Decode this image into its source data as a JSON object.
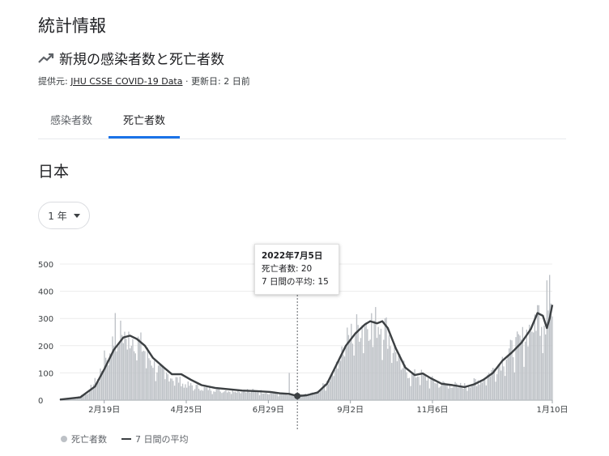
{
  "header": {
    "title": "統計情報",
    "subtitle": "新規の感染者数と死亡者数",
    "source_label": "提供元:",
    "source_link": "JHU CSSE COVID-19 Data",
    "updated": "· 更新日: 2 日前"
  },
  "tabs": [
    {
      "label": "感染者数"
    },
    {
      "label": "死亡者数"
    }
  ],
  "region": "日本",
  "range_select": {
    "value": "1 年"
  },
  "tooltip": {
    "date": "2022年7月5日",
    "deaths": "死亡者数: 20",
    "avg": "7 日間の平均: 15"
  },
  "legend": {
    "deaths": "死亡者数",
    "avg": "7 日間の平均"
  },
  "colors": {
    "bar": "#bdc1c6",
    "line": "#3c4043",
    "accent": "#1a73e8"
  },
  "chart_data": {
    "type": "bar",
    "x_range": [
      "2022-01-10",
      "2023-01-10"
    ],
    "ylim": [
      0,
      500
    ],
    "y_ticks": [
      0,
      100,
      200,
      300,
      400,
      500
    ],
    "x_ticks": [
      "2月19日",
      "4月25日",
      "6月29日",
      "9月2日",
      "11月6日",
      "1月10日"
    ],
    "grid": true,
    "legend_position": "bottom-left",
    "series": [
      {
        "name": "死亡者数",
        "type": "bar",
        "description": "daily deaths, estimated from the bar envelope",
        "points": [
          [
            "2022-01-10",
            3
          ],
          [
            "2022-01-20",
            7
          ],
          [
            "2022-01-30",
            25
          ],
          [
            "2022-02-07",
            80
          ],
          [
            "2022-02-13",
            160
          ],
          [
            "2022-02-19",
            215
          ],
          [
            "2022-02-24",
            245
          ],
          [
            "2022-03-01",
            235
          ],
          [
            "2022-03-05",
            230
          ],
          [
            "2022-03-10",
            210
          ],
          [
            "2022-03-16",
            165
          ],
          [
            "2022-03-23",
            115
          ],
          [
            "2022-03-30",
            95
          ],
          [
            "2022-04-07",
            75
          ],
          [
            "2022-04-15",
            55
          ],
          [
            "2022-04-25",
            45
          ],
          [
            "2022-05-05",
            40
          ],
          [
            "2022-05-15",
            35
          ],
          [
            "2022-05-25",
            38
          ],
          [
            "2022-06-05",
            33
          ],
          [
            "2022-06-15",
            28
          ],
          [
            "2022-06-25",
            22
          ],
          [
            "2022-06-29",
            20
          ],
          [
            "2022-07-05",
            20
          ],
          [
            "2022-07-10",
            18
          ],
          [
            "2022-07-20",
            30
          ],
          [
            "2022-07-28",
            70
          ],
          [
            "2022-08-03",
            140
          ],
          [
            "2022-08-10",
            215
          ],
          [
            "2022-08-17",
            260
          ],
          [
            "2022-08-24",
            285
          ],
          [
            "2022-09-02",
            285
          ],
          [
            "2022-09-08",
            270
          ],
          [
            "2022-09-14",
            200
          ],
          [
            "2022-09-20",
            130
          ],
          [
            "2022-09-27",
            90
          ],
          [
            "2022-10-04",
            95
          ],
          [
            "2022-10-11",
            75
          ],
          [
            "2022-10-20",
            60
          ],
          [
            "2022-10-30",
            55
          ],
          [
            "2022-11-06",
            52
          ],
          [
            "2022-11-13",
            65
          ],
          [
            "2022-11-20",
            80
          ],
          [
            "2022-11-27",
            110
          ],
          [
            "2022-12-04",
            150
          ],
          [
            "2022-12-11",
            185
          ],
          [
            "2022-12-18",
            215
          ],
          [
            "2022-12-24",
            260
          ],
          [
            "2022-12-30",
            320
          ],
          [
            "2023-01-04",
            300
          ],
          [
            "2023-01-07",
            330
          ],
          [
            "2023-01-10",
            360
          ]
        ],
        "spikes": [
          [
            "2022-06-29",
            100
          ],
          [
            "2023-01-08",
            460
          ],
          [
            "2023-01-06",
            440
          ],
          [
            "2022-02-20",
            320
          ]
        ]
      },
      {
        "name": "7 日間の平均",
        "type": "line",
        "points": [
          [
            "2022-01-10",
            2
          ],
          [
            "2022-01-25",
            10
          ],
          [
            "2022-02-05",
            50
          ],
          [
            "2022-02-12",
            115
          ],
          [
            "2022-02-19",
            185
          ],
          [
            "2022-02-26",
            230
          ],
          [
            "2022-03-03",
            237
          ],
          [
            "2022-03-08",
            225
          ],
          [
            "2022-03-14",
            200
          ],
          [
            "2022-03-20",
            155
          ],
          [
            "2022-03-28",
            120
          ],
          [
            "2022-04-03",
            95
          ],
          [
            "2022-04-10",
            95
          ],
          [
            "2022-04-17",
            75
          ],
          [
            "2022-04-25",
            55
          ],
          [
            "2022-05-05",
            45
          ],
          [
            "2022-05-15",
            40
          ],
          [
            "2022-05-25",
            35
          ],
          [
            "2022-06-05",
            33
          ],
          [
            "2022-06-15",
            30
          ],
          [
            "2022-06-22",
            25
          ],
          [
            "2022-06-29",
            23
          ],
          [
            "2022-07-05",
            15
          ],
          [
            "2022-07-12",
            18
          ],
          [
            "2022-07-20",
            28
          ],
          [
            "2022-07-27",
            60
          ],
          [
            "2022-08-03",
            130
          ],
          [
            "2022-08-10",
            200
          ],
          [
            "2022-08-17",
            245
          ],
          [
            "2022-08-24",
            278
          ],
          [
            "2022-08-28",
            290
          ],
          [
            "2022-09-02",
            282
          ],
          [
            "2022-09-06",
            290
          ],
          [
            "2022-09-10",
            265
          ],
          [
            "2022-09-16",
            190
          ],
          [
            "2022-09-23",
            120
          ],
          [
            "2022-09-30",
            92
          ],
          [
            "2022-10-06",
            98
          ],
          [
            "2022-10-12",
            80
          ],
          [
            "2022-10-20",
            60
          ],
          [
            "2022-10-28",
            55
          ],
          [
            "2022-11-06",
            48
          ],
          [
            "2022-11-13",
            58
          ],
          [
            "2022-11-20",
            75
          ],
          [
            "2022-11-27",
            100
          ],
          [
            "2022-12-04",
            145
          ],
          [
            "2022-12-11",
            175
          ],
          [
            "2022-12-18",
            210
          ],
          [
            "2022-12-25",
            260
          ],
          [
            "2022-12-30",
            320
          ],
          [
            "2023-01-03",
            310
          ],
          [
            "2023-01-06",
            265
          ],
          [
            "2023-01-08",
            300
          ],
          [
            "2023-01-10",
            350
          ]
        ]
      }
    ],
    "highlight": {
      "date": "2022-07-05",
      "deaths": 20,
      "avg": 15
    }
  }
}
